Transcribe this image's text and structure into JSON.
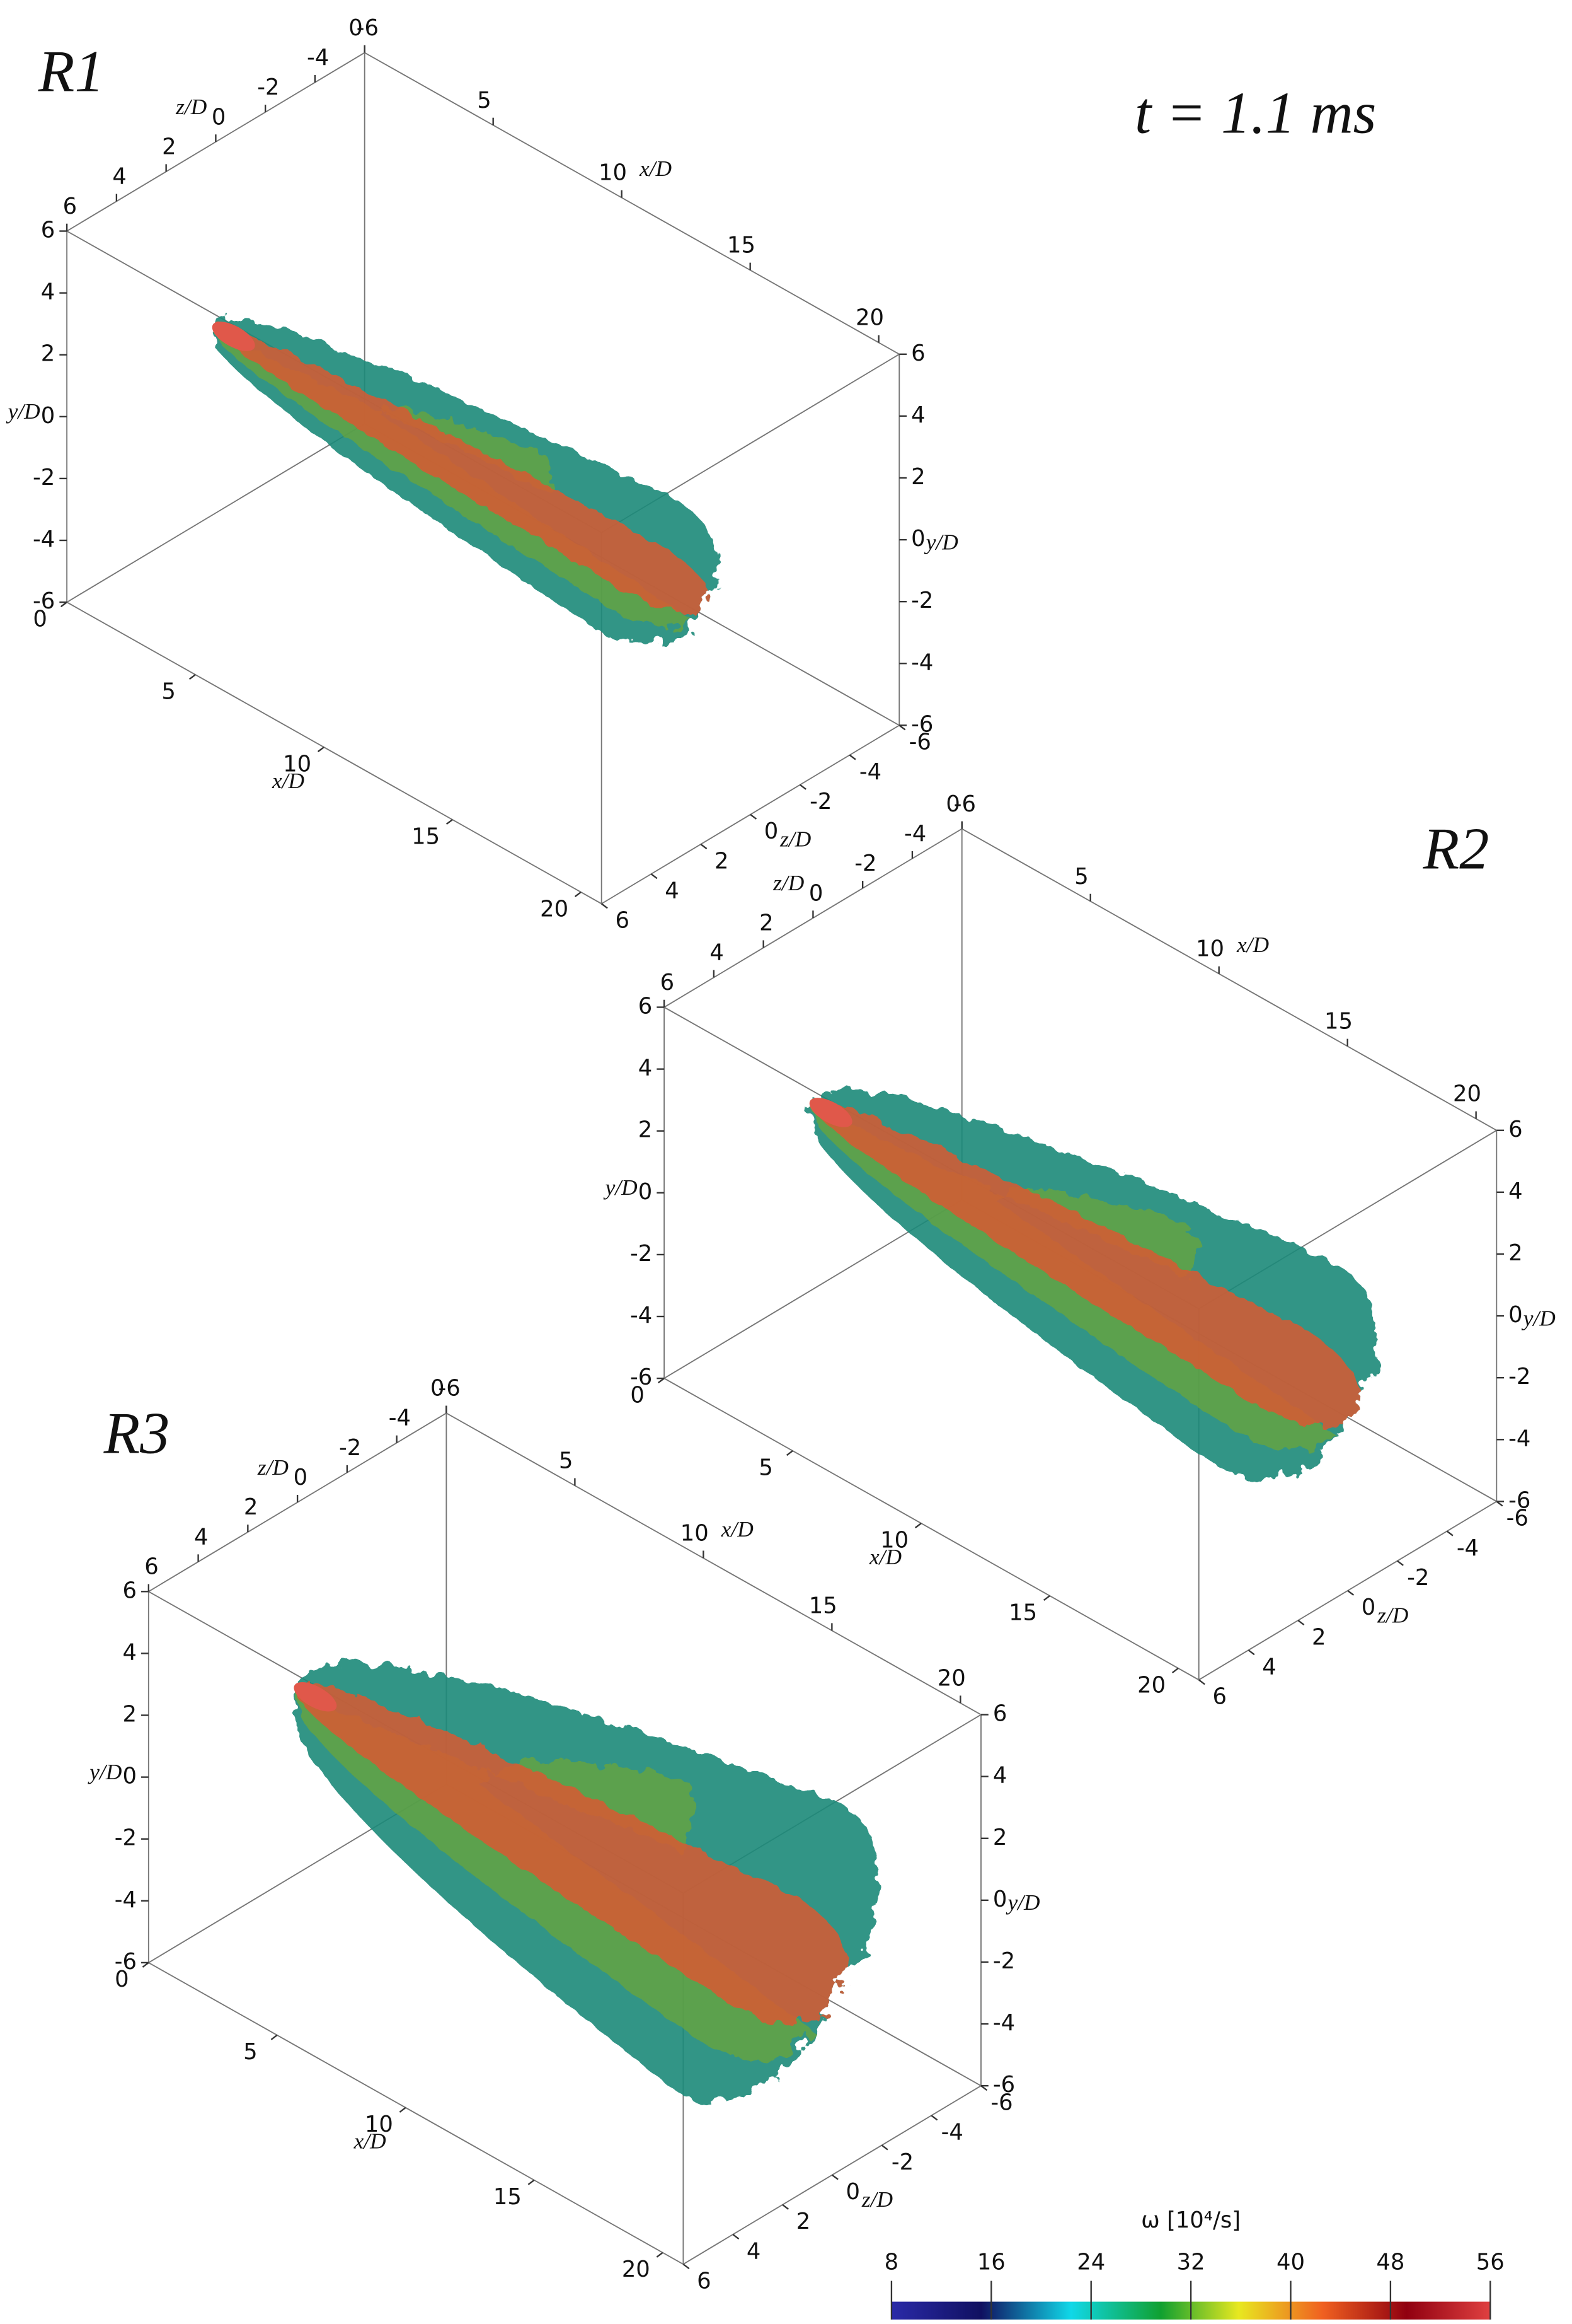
{
  "time_label": "t = 1.1 ms",
  "panels": [
    {
      "label": "R1"
    },
    {
      "label": "R2"
    },
    {
      "label": "R3"
    }
  ],
  "axis_labels": {
    "x": "x/D",
    "y": "y/D",
    "z": "z/D"
  },
  "x_ticks": [
    0,
    5,
    10,
    15,
    20
  ],
  "y_ticks": [
    6,
    4,
    2,
    0,
    -2,
    -4,
    -6
  ],
  "z_ticks": [
    6,
    4,
    2,
    0,
    -2,
    -4,
    -6
  ],
  "colorbar": {
    "label": "ω [10⁴/s]",
    "range": [
      8,
      56
    ],
    "ticks": [
      8,
      16,
      24,
      32,
      40,
      48,
      56
    ]
  }
}
